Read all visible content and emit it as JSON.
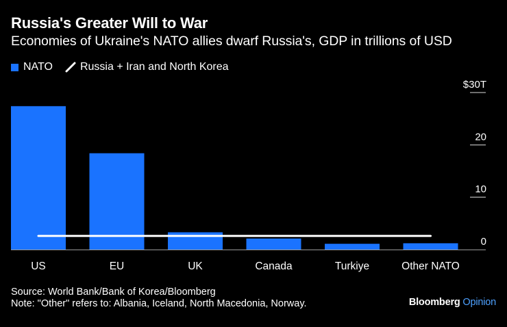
{
  "chart_data": {
    "type": "bar",
    "title": "Russia's Greater Will to War",
    "subtitle": "Economies of Ukraine's NATO allies dwarf Russia's, GDP in trillions of USD",
    "categories": [
      "US",
      "EU",
      "UK",
      "Canada",
      "Turkiye",
      "Other NATO"
    ],
    "series": [
      {
        "name": "NATO",
        "values": [
          27.4,
          18.4,
          3.3,
          2.1,
          1.1,
          1.2
        ]
      }
    ],
    "reference_line": {
      "name": "Russia + Iran and North Korea",
      "value": 2.6
    },
    "ylim": [
      0,
      30
    ],
    "yticks": [
      0,
      10,
      20,
      30
    ],
    "ytick_labels": [
      "0",
      "10",
      "20",
      "$30T"
    ],
    "colors": {
      "bar": "#1a73ff",
      "reference": "#ffffff",
      "tick": "#dddddd"
    }
  },
  "legend": {
    "nato": "NATO",
    "russia": "Russia + Iran and North Korea"
  },
  "footer": {
    "source": "Source: World Bank/Bank of Korea/Bloomberg",
    "note": "Note: \"Other\" refers to: Albania, Iceland, North Macedonia, Norway."
  },
  "brand": {
    "name": "Bloomberg",
    "suffix": "Opinion"
  }
}
